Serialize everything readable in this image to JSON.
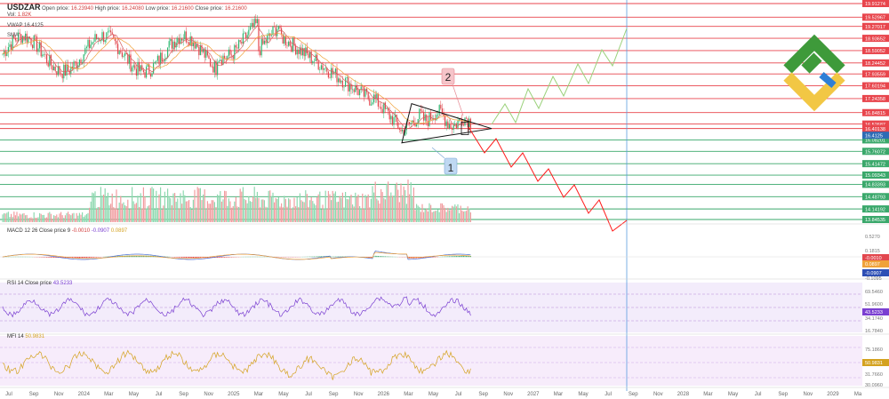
{
  "header": {
    "symbol": "USDZAR",
    "open_label": "Open price:",
    "open_value": "16.23940",
    "high_label": "High price:",
    "high_value": "16.24080",
    "low_label": "Low price:",
    "low_value": "16.21600",
    "close_label": "Close price:",
    "close_value": "16.21600",
    "vol_label": "Vol:",
    "vol_value": "1.82K",
    "vwap_label": "VWAP",
    "vwap_value": "16.4125",
    "sma_label": "SMA"
  },
  "indicators": {
    "macd": {
      "label": "MACD 12 26 Close price 9",
      "v1": "-0.0010",
      "v2": "-0.0907",
      "v3": "0.0897"
    },
    "rsi": {
      "label": "RSI 14 Close price",
      "value": "43.5233"
    },
    "mfi": {
      "label": "MFI 14",
      "value": "50.9831"
    }
  },
  "colors": {
    "level_line": "#e8454c",
    "level_green": "#3aa86b",
    "current_price": "#2e6bb5",
    "projection_up": "#9ad17a",
    "projection_down": "#ff1a1a",
    "rsi_line": "#7a3fd1",
    "mfi_line": "#d4a21f",
    "macd_line": "#4a6fd6",
    "signal_line": "#f0a23a"
  },
  "chart_data": {
    "type": "candlestick",
    "title": "USDZAR",
    "price_levels_red": [
      "19.91274",
      "19.52967",
      "19.27017",
      "18.93652",
      "18.59052",
      "18.24452",
      "17.93559",
      "17.60194",
      "17.24358",
      "16.84815",
      "16.52687",
      "16.40138"
    ],
    "price_levels_green": [
      "16.08201",
      "15.76072",
      "15.41472",
      "15.09343",
      "14.83393",
      "14.48793",
      "14.14192",
      "13.84535"
    ],
    "current_price": "16.4125",
    "pattern_labels": [
      "1",
      "2"
    ],
    "x_tick_labels": [
      "Jul",
      "Sep",
      "Nov",
      "2024",
      "Mar",
      "May",
      "Jul",
      "Sep",
      "Nov",
      "2025",
      "Mar",
      "May",
      "Jul",
      "Sep",
      "Nov",
      "2026",
      "Mar",
      "May",
      "Jul",
      "Sep",
      "Nov",
      "2027",
      "Mar",
      "May",
      "Jul",
      "Sep",
      "Nov",
      "2028",
      "Mar",
      "May",
      "Jul",
      "Sep",
      "Nov",
      "2029",
      "Ma"
    ],
    "macd_axis_labels": [
      "0.5270",
      "0.1815",
      "-0.0010",
      "0.0897",
      "-0.0907",
      "-0.1095"
    ],
    "rsi_axis_labels": [
      "69.5460",
      "51.9600",
      "43.5233",
      "34.1740",
      "16.7840"
    ],
    "mfi_axis_labels": [
      "75.1860",
      "50.9831",
      "31.7660",
      "30.0960"
    ]
  }
}
